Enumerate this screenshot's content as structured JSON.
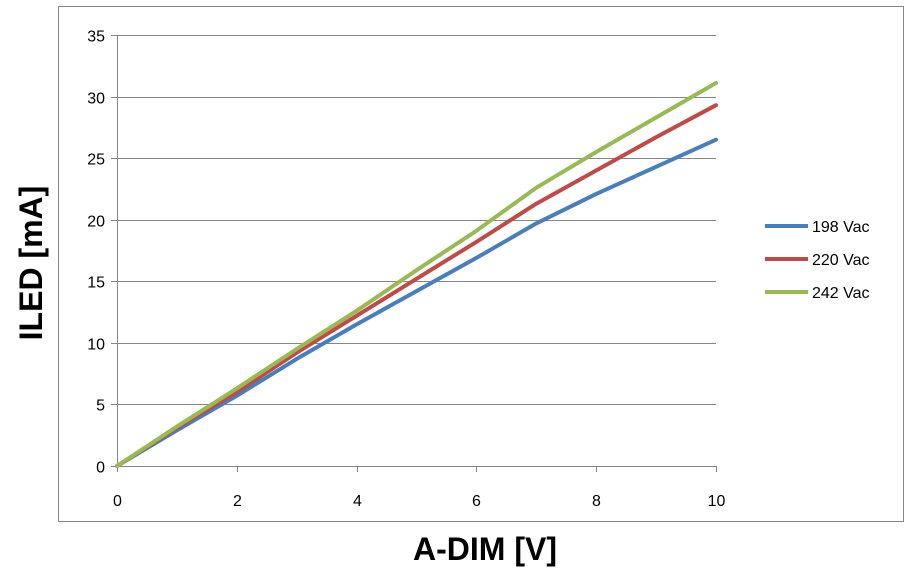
{
  "chart_data": {
    "type": "line",
    "title": "",
    "xlabel": "A-DIM [V]",
    "ylabel": "ILED [mA]",
    "xlim": [
      0,
      10
    ],
    "ylim": [
      0,
      35
    ],
    "x_ticks": [
      0,
      2,
      4,
      6,
      8,
      10
    ],
    "y_ticks": [
      0,
      5,
      10,
      15,
      20,
      25,
      30,
      35
    ],
    "grid": "horizontal",
    "legend_position": "right",
    "x": [
      0,
      1,
      2,
      3,
      4,
      5,
      6,
      7,
      8,
      9,
      10
    ],
    "series": [
      {
        "name": "198 Vac",
        "color": "#4a7ebb",
        "values": [
          0,
          2.9,
          5.7,
          8.7,
          11.5,
          14.2,
          16.9,
          19.7,
          22.1,
          24.3,
          26.5
        ]
      },
      {
        "name": "220 Vac",
        "color": "#be4b48",
        "values": [
          0,
          3.1,
          6.0,
          9.2,
          12.2,
          15.2,
          18.2,
          21.3,
          24.0,
          26.7,
          29.3
        ]
      },
      {
        "name": "242 Vac",
        "color": "#98b954",
        "values": [
          0,
          3.2,
          6.3,
          9.5,
          12.6,
          15.9,
          19.1,
          22.6,
          25.5,
          28.3,
          31.1
        ]
      }
    ]
  }
}
